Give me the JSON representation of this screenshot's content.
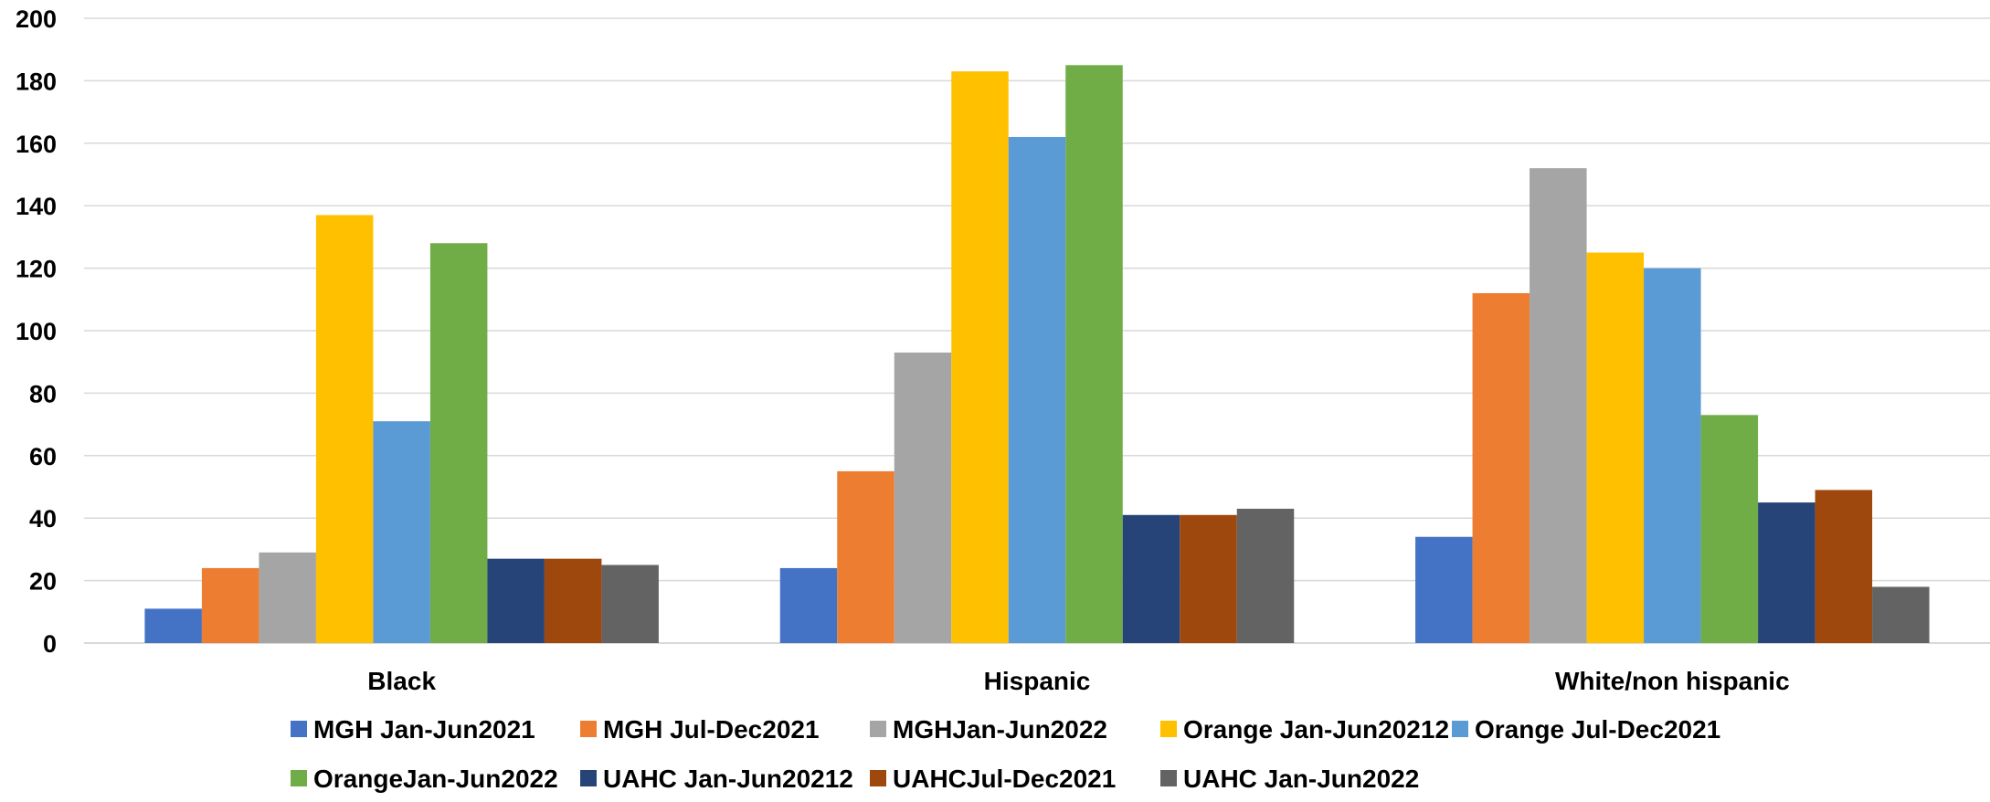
{
  "chart_data": {
    "type": "bar",
    "title": "",
    "xlabel": "",
    "ylabel": "",
    "ylim": [
      0,
      200
    ],
    "yticks": [
      0,
      20,
      40,
      60,
      80,
      100,
      120,
      140,
      160,
      180,
      200
    ],
    "grid": true,
    "legend_position": "bottom",
    "categories": [
      "Black",
      "Hispanic",
      "White/non hispanic"
    ],
    "series": [
      {
        "name": "MGH Jan-Jun2021",
        "color": "#4472C4",
        "values": [
          11,
          24,
          34
        ]
      },
      {
        "name": "MGH Jul-Dec2021",
        "color": "#ED7D31",
        "values": [
          24,
          55,
          112
        ]
      },
      {
        "name": "MGHJan-Jun2022",
        "color": "#A5A5A5",
        "values": [
          29,
          93,
          152
        ]
      },
      {
        "name": "Orange Jan-Jun20212",
        "color": "#FFC000",
        "values": [
          137,
          183,
          125
        ]
      },
      {
        "name": "Orange Jul-Dec2021",
        "color": "#5B9BD5",
        "values": [
          71,
          162,
          120
        ]
      },
      {
        "name": "OrangeJan-Jun2022",
        "color": "#70AD47",
        "values": [
          128,
          185,
          73
        ]
      },
      {
        "name": "UAHC Jan-Jun20212",
        "color": "#264478",
        "values": [
          27,
          41,
          45
        ]
      },
      {
        "name": "UAHCJul-Dec2021",
        "color": "#9E480E",
        "values": [
          27,
          41,
          49
        ]
      },
      {
        "name": "UAHC Jan-Jun2022",
        "color": "#636363",
        "values": [
          25,
          43,
          18
        ]
      }
    ]
  }
}
